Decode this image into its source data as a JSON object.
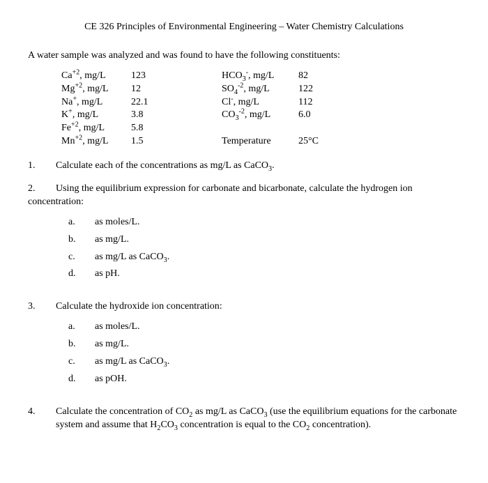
{
  "title": "CE 326  Principles of Environmental Engineering –   Water Chemistry Calculations",
  "intro": "A water sample was analyzed and was found to have the following constituents:",
  "data": {
    "left": [
      {
        "label_html": "Ca<sup>+2</sup>, mg/L",
        "val": "123"
      },
      {
        "label_html": "Mg<sup>+2</sup>, mg/L",
        "val": "12"
      },
      {
        "label_html": "Na<sup>+</sup>, mg/L",
        "val": "22.1"
      },
      {
        "label_html": "K<sup>+</sup>, mg/L",
        "val": "3.8"
      },
      {
        "label_html": "Fe<sup>+2</sup>, mg/L",
        "val": "5.8"
      },
      {
        "label_html": "Mn<sup>+2</sup>, mg/L",
        "val": "1.5"
      }
    ],
    "right": [
      {
        "label_html": "HCO<sub>3</sub><sup>-</sup>, mg/L",
        "val": "82"
      },
      {
        "label_html": "SO<sub>4</sub><sup>-2</sup>, mg/L",
        "val": "122"
      },
      {
        "label_html": "Cl<sup>-</sup>, mg/L",
        "val": "112"
      },
      {
        "label_html": "CO<sub>3</sub><sup>-2</sup>, mg/L",
        "val": "6.0"
      },
      {
        "label_html": "",
        "val": ""
      },
      {
        "label_html": "Temperature",
        "val": "25°C"
      }
    ]
  },
  "questions": [
    {
      "num": "1.",
      "text_html": "Calculate each of the concentrations as mg/L as CaCO<sub>3</sub>.",
      "subs": []
    },
    {
      "num": "2.",
      "text_html": "Using the equilibrium expression for carbonate and bicarbonate, calculate the hydrogen ion",
      "cont": "concentration:",
      "subs": [
        {
          "l": "a.",
          "t_html": "as moles/L."
        },
        {
          "l": "b.",
          "t_html": "as mg/L."
        },
        {
          "l": "c.",
          "t_html": "as mg/L as CaCO<sub>3</sub>."
        },
        {
          "l": "d.",
          "t_html": "as pH."
        }
      ]
    },
    {
      "num": "3.",
      "text_html": "Calculate the hydroxide ion concentration:",
      "subs": [
        {
          "l": "a.",
          "t_html": "as moles/L."
        },
        {
          "l": "b.",
          "t_html": "as mg/L."
        },
        {
          "l": "c.",
          "t_html": "as mg/L as CaCO<sub>3</sub>."
        },
        {
          "l": "d.",
          "t_html": "as pOH."
        }
      ]
    },
    {
      "num": "4.",
      "text_html": "Calculate the concentration of CO<sub>2</sub> as mg/L as CaCO<sub>3</sub> (use the equilibrium equations for the carbonate system and assume that H<sub>2</sub>CO<sub>3</sub> concentration is equal to the CO<sub>2</sub> concentration).",
      "subs": []
    }
  ]
}
